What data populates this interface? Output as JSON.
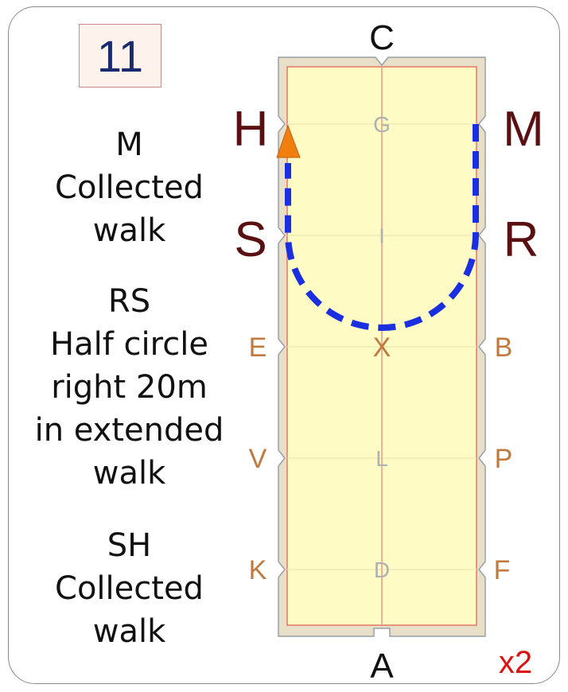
{
  "test_number": "11",
  "instructions": [
    {
      "lines": [
        "M",
        "Collected",
        "walk"
      ]
    },
    {
      "lines": [
        "RS",
        "Half circle",
        "right 20m",
        "in extended",
        "walk"
      ]
    },
    {
      "lines": [
        "SH",
        "Collected",
        "walk"
      ]
    }
  ],
  "arena": {
    "end_letters": {
      "top": "C",
      "bottom": "A"
    },
    "left_big": [
      "H",
      "S"
    ],
    "right_big": [
      "M",
      "R"
    ],
    "left_side": [
      "E",
      "V",
      "K"
    ],
    "right_side": [
      "B",
      "P",
      "F"
    ],
    "center_letters": [
      "G",
      "I",
      "X",
      "L",
      "D"
    ]
  },
  "repeat": "x2",
  "colors": {
    "arena_fill": "#fefbc4",
    "arena_border": "#e8dfc8",
    "path": "#1a2fe0",
    "arrow": "#f07f10",
    "center_line": "#e89a8a"
  }
}
